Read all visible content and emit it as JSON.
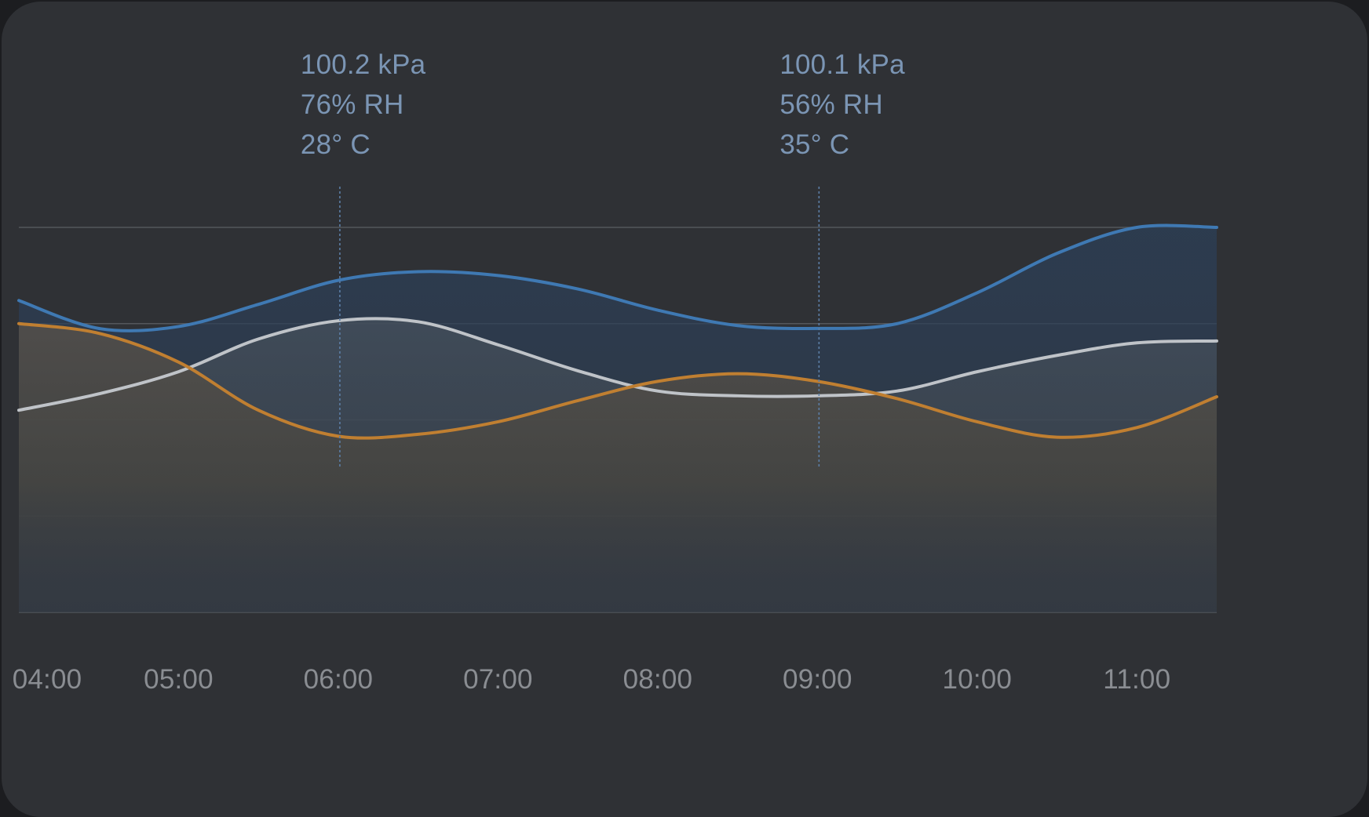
{
  "theme": {
    "card": "#2f3135",
    "grid": "#5b5e63",
    "marker": "#5c7ea6",
    "tooltip_text": "#7b95b4",
    "tick_text": "#8a8d92"
  },
  "chart_data": {
    "type": "area",
    "title": "",
    "xlabel": "",
    "ylabel": "",
    "grid": true,
    "categories": [
      "04:00",
      "05:00",
      "06:00",
      "07:00",
      "08:00",
      "09:00",
      "10:00",
      "11:00"
    ],
    "xlim": [
      "04:00",
      "11:30"
    ],
    "ylim": [
      0,
      4
    ],
    "series": [
      {
        "key": "pressure",
        "color": "#3f79b3",
        "fill": "#2c3e55",
        "points": [
          [
            "04:00",
            3.24
          ],
          [
            "04:30",
            2.95
          ],
          [
            "05:00",
            2.97
          ],
          [
            "05:30",
            3.2
          ],
          [
            "06:00",
            3.45
          ],
          [
            "06:30",
            3.54
          ],
          [
            "07:00",
            3.5
          ],
          [
            "07:30",
            3.36
          ],
          [
            "08:00",
            3.14
          ],
          [
            "08:30",
            2.98
          ],
          [
            "09:00",
            2.95
          ],
          [
            "09:30",
            3.0
          ],
          [
            "10:00",
            3.32
          ],
          [
            "10:30",
            3.73
          ],
          [
            "11:00",
            4.0
          ],
          [
            "11:30",
            4.0
          ]
        ]
      },
      {
        "key": "humidity",
        "color": "#bfc3c8",
        "fill": "#3c434c",
        "points": [
          [
            "04:00",
            2.1
          ],
          [
            "04:30",
            2.27
          ],
          [
            "05:00",
            2.5
          ],
          [
            "05:30",
            2.84
          ],
          [
            "06:00",
            3.03
          ],
          [
            "06:30",
            3.02
          ],
          [
            "07:00",
            2.78
          ],
          [
            "07:30",
            2.51
          ],
          [
            "08:00",
            2.3
          ],
          [
            "08:30",
            2.25
          ],
          [
            "09:00",
            2.25
          ],
          [
            "09:30",
            2.3
          ],
          [
            "10:00",
            2.5
          ],
          [
            "10:30",
            2.67
          ],
          [
            "11:00",
            2.8
          ],
          [
            "11:30",
            2.82
          ]
        ]
      },
      {
        "key": "temperature",
        "color": "#c07f31",
        "fill": "#4a4742",
        "points": [
          [
            "04:00",
            3.0
          ],
          [
            "04:30",
            2.9
          ],
          [
            "05:00",
            2.6
          ],
          [
            "05:30",
            2.1
          ],
          [
            "06:00",
            1.83
          ],
          [
            "06:30",
            1.85
          ],
          [
            "07:00",
            1.98
          ],
          [
            "07:30",
            2.2
          ],
          [
            "08:00",
            2.4
          ],
          [
            "08:30",
            2.48
          ],
          [
            "09:00",
            2.4
          ],
          [
            "09:30",
            2.22
          ],
          [
            "10:00",
            1.98
          ],
          [
            "10:30",
            1.82
          ],
          [
            "11:00",
            1.92
          ],
          [
            "11:30",
            2.24
          ]
        ]
      }
    ],
    "markers": [
      {
        "x": "06:00",
        "lines": [
          "100.2 kPa",
          "76% RH",
          "28° C"
        ]
      },
      {
        "x": "09:00",
        "lines": [
          "100.1 kPa",
          "56% RH",
          "35° C"
        ]
      }
    ]
  }
}
